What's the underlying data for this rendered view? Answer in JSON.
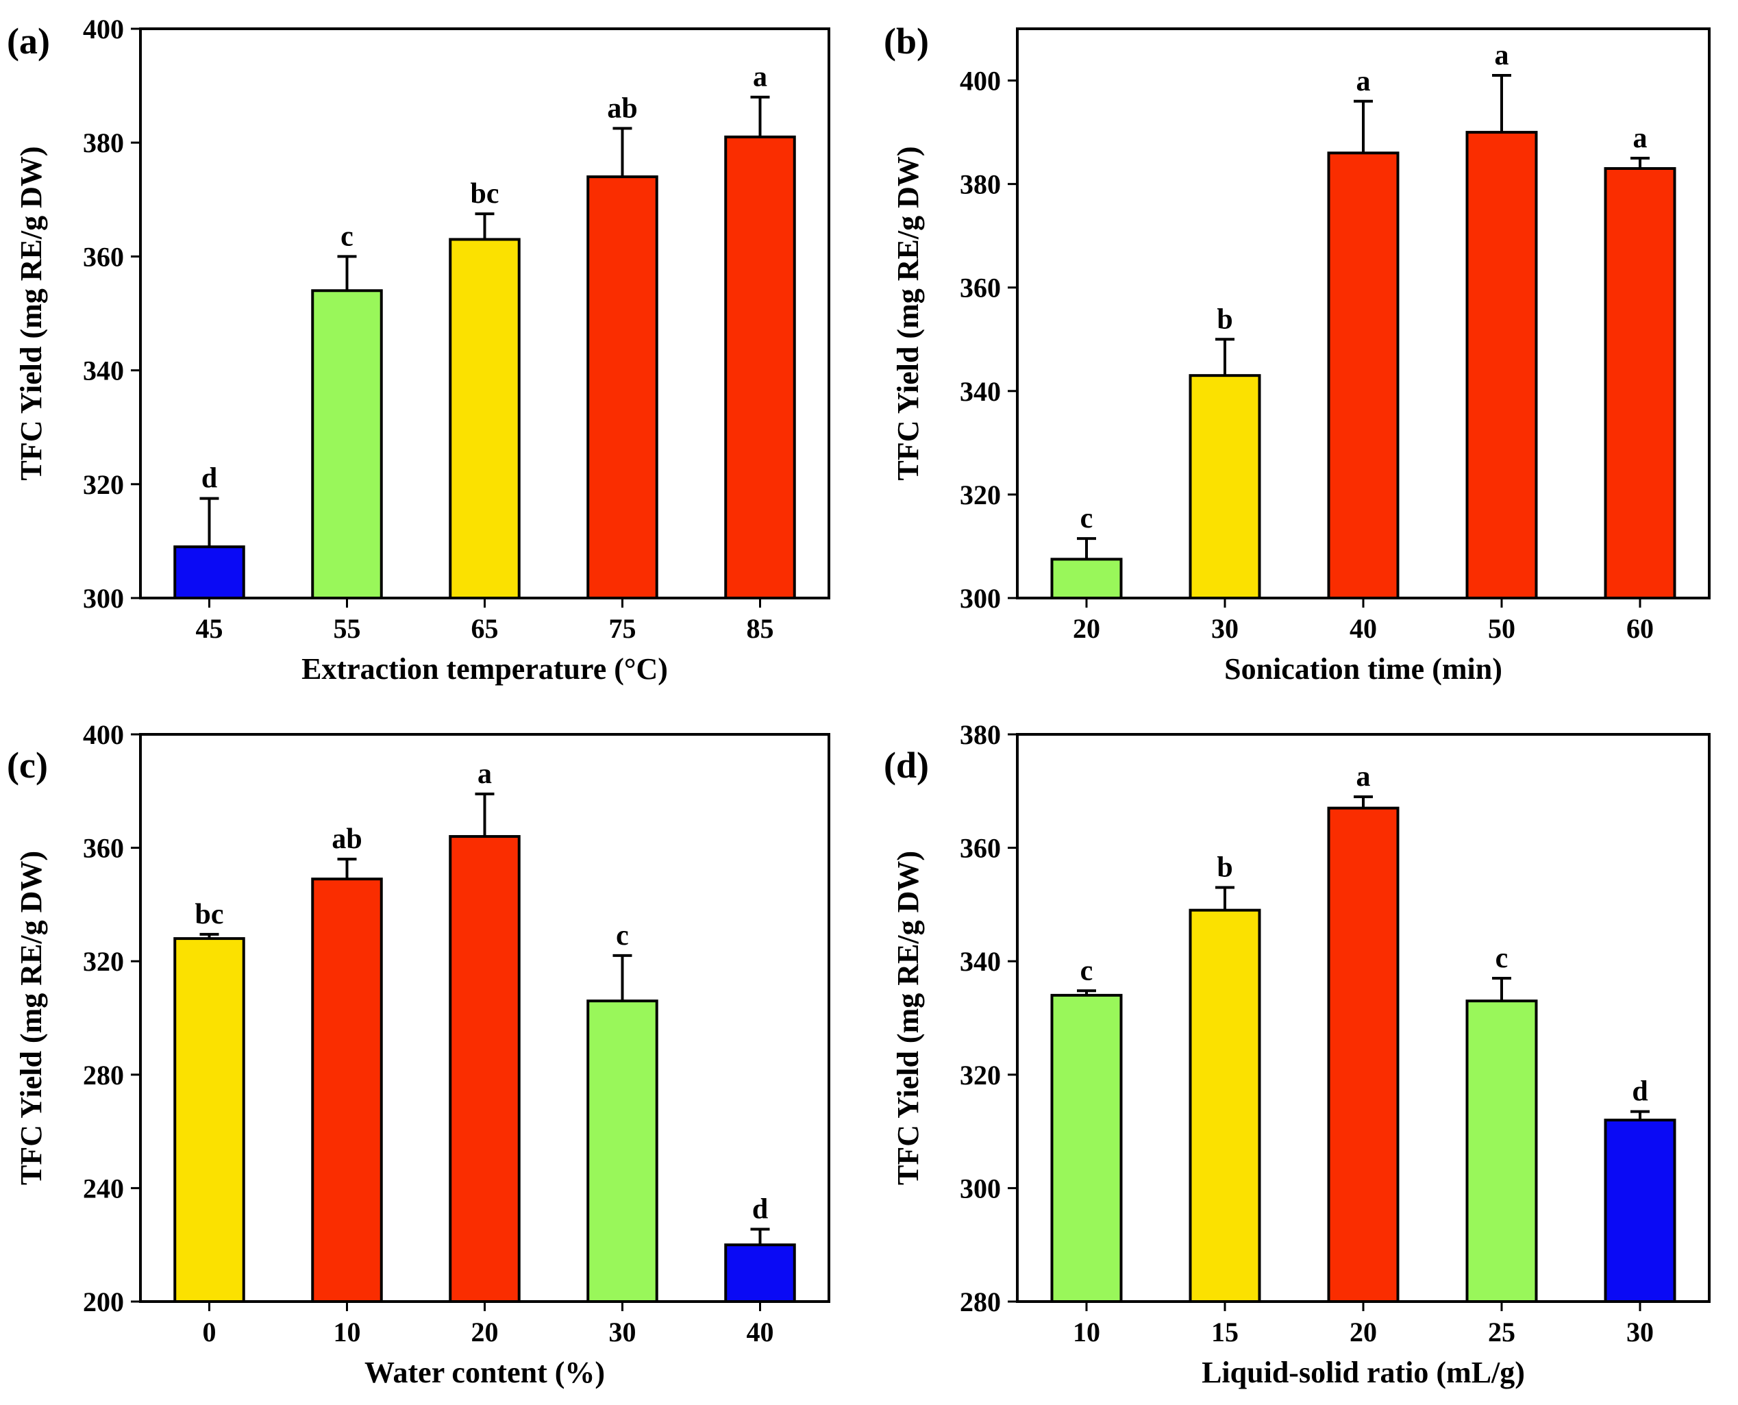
{
  "chart_data": [
    {
      "type": "bar",
      "panel_label": "(a)",
      "xlabel": "Extraction temperature (°C)",
      "ylabel": "TFC Yield (mg RE/g DW)",
      "ylim": [
        300,
        400
      ],
      "yticks": [
        "300",
        "320",
        "340",
        "360",
        "380",
        "400"
      ],
      "categories": [
        "45",
        "55",
        "65",
        "75",
        "85"
      ],
      "values": [
        309,
        354,
        363,
        374,
        381
      ],
      "errors": [
        8.5,
        6,
        4.5,
        8.5,
        7
      ],
      "letters": [
        "d",
        "c",
        "bc",
        "ab",
        "a"
      ],
      "colors": [
        "#0a0af5",
        "#99f75a",
        "#fbe100",
        "#fa2d00",
        "#fa2d00"
      ]
    },
    {
      "type": "bar",
      "panel_label": "(b)",
      "xlabel": "Sonication time (min)",
      "ylabel": "TFC Yield (mg RE/g DW)",
      "ylim": [
        300,
        410
      ],
      "yticks": [
        "300",
        "320",
        "340",
        "360",
        "380",
        "400"
      ],
      "categories": [
        "20",
        "30",
        "40",
        "50",
        "60"
      ],
      "values": [
        307.5,
        343,
        386,
        390,
        383
      ],
      "errors": [
        4,
        7,
        10,
        11,
        2
      ],
      "letters": [
        "c",
        "b",
        "a",
        "a",
        "a"
      ],
      "colors": [
        "#99f75a",
        "#fbe100",
        "#fa2d00",
        "#fa2d00",
        "#fa2d00"
      ]
    },
    {
      "type": "bar",
      "panel_label": "(c)",
      "xlabel": "Water content (%)",
      "ylabel": "TFC Yield (mg RE/g DW)",
      "ylim": [
        200,
        400
      ],
      "yticks": [
        "200",
        "240",
        "280",
        "320",
        "360",
        "400"
      ],
      "categories": [
        "0",
        "10",
        "20",
        "30",
        "40"
      ],
      "values": [
        328,
        349,
        364,
        306,
        220
      ],
      "errors": [
        1.5,
        7,
        15,
        16,
        5.5
      ],
      "letters": [
        "bc",
        "ab",
        "a",
        "c",
        "d"
      ],
      "colors": [
        "#fbe100",
        "#fa2d00",
        "#fa2d00",
        "#99f75a",
        "#0a0af5"
      ]
    },
    {
      "type": "bar",
      "panel_label": "(d)",
      "xlabel": "Liquid-solid ratio (mL/g)",
      "ylabel": "TFC Yield (mg RE/g DW)",
      "ylim": [
        280,
        380
      ],
      "yticks": [
        "280",
        "300",
        "320",
        "340",
        "360",
        "380"
      ],
      "categories": [
        "10",
        "15",
        "20",
        "25",
        "30"
      ],
      "values": [
        334,
        349,
        367,
        333,
        312
      ],
      "errors": [
        0.8,
        4,
        2,
        4,
        1.5
      ],
      "letters": [
        "c",
        "b",
        "a",
        "c",
        "d"
      ],
      "colors": [
        "#99f75a",
        "#fbe100",
        "#fa2d00",
        "#99f75a",
        "#0a0af5"
      ]
    }
  ]
}
